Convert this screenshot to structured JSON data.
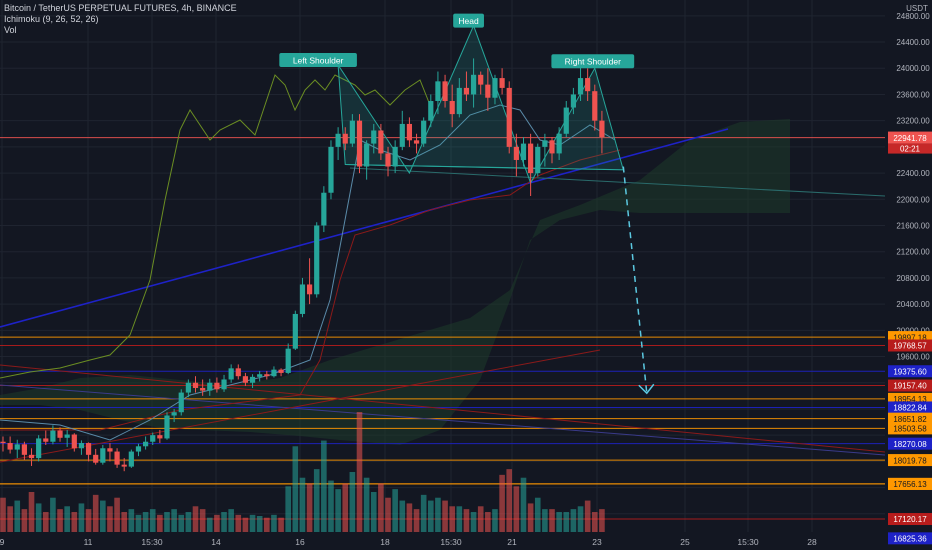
{
  "header": {
    "symbol_line": "Bitcoin / TetherUS PERPETUAL FUTURES, 4h, BINANCE",
    "indicator_ichimoku": "Ichimoku (9, 26, 52, 26)",
    "indicator_vol": "Vol"
  },
  "colors": {
    "background": "#131722",
    "up": "#26a69a",
    "down": "#ef5350",
    "ichimoku_lagging": "#6b8e23",
    "ichimoku_base": "#8b1a1a",
    "ichimoku_conversion": "#2962ff",
    "trendline_blue": "#1e22c8",
    "pattern_fill": "#26a69a",
    "forecast": "#5bc8e0",
    "cloud_fill": "#1e3a2a",
    "orange": "#ff9800",
    "red": "#b71c1c",
    "blue": "#1e22c8"
  },
  "chart_data": {
    "type": "candlestick",
    "title": "Bitcoin / TetherUS PERPETUAL FUTURES, 4h, BINANCE",
    "y_axis": {
      "unit": "USDT",
      "tick_labels": [
        "24800.00",
        "24400.00",
        "24000.00",
        "23600.00",
        "23200.00",
        "22800.00",
        "22400.00",
        "22000.00",
        "21600.00",
        "21200.00",
        "20800.00",
        "20400.00",
        "20000.00",
        "19600.00"
      ],
      "ylim": [
        16800,
        24950
      ]
    },
    "x_axis": {
      "tick_labels": [
        "9",
        "11",
        "15:30",
        "14",
        "16",
        "18",
        "15:30",
        "21",
        "23",
        "25",
        "15:30",
        "28"
      ]
    },
    "candles_ohlc": [
      [
        18300,
        18380,
        18150,
        18280
      ],
      [
        18280,
        18380,
        18120,
        18180
      ],
      [
        18180,
        18330,
        18050,
        18260
      ],
      [
        18260,
        18300,
        18020,
        18100
      ],
      [
        18100,
        18200,
        17930,
        18050
      ],
      [
        18050,
        18400,
        18000,
        18350
      ],
      [
        18350,
        18470,
        18250,
        18300
      ],
      [
        18300,
        18550,
        18260,
        18470
      ],
      [
        18470,
        18520,
        18300,
        18360
      ],
      [
        18360,
        18480,
        18220,
        18410
      ],
      [
        18410,
        18430,
        18150,
        18200
      ],
      [
        18200,
        18320,
        18100,
        18280
      ],
      [
        18280,
        18290,
        18000,
        18100
      ],
      [
        18100,
        18190,
        17950,
        17980
      ],
      [
        17980,
        18250,
        17950,
        18200
      ],
      [
        18200,
        18280,
        18000,
        18150
      ],
      [
        18150,
        18200,
        17900,
        17950
      ],
      [
        17950,
        18050,
        17850,
        17920
      ],
      [
        17920,
        18180,
        17900,
        18150
      ],
      [
        18150,
        18270,
        18080,
        18230
      ],
      [
        18230,
        18380,
        18180,
        18300
      ],
      [
        18300,
        18440,
        18250,
        18400
      ],
      [
        18400,
        18480,
        18280,
        18350
      ],
      [
        18350,
        18750,
        18330,
        18700
      ],
      [
        18700,
        18800,
        18600,
        18750
      ],
      [
        18750,
        19100,
        18700,
        19050
      ],
      [
        19050,
        19250,
        18980,
        19200
      ],
      [
        19200,
        19300,
        19050,
        19120
      ],
      [
        19120,
        19250,
        19000,
        19080
      ],
      [
        19080,
        19260,
        19000,
        19200
      ],
      [
        19200,
        19280,
        19050,
        19100
      ],
      [
        19100,
        19320,
        19060,
        19250
      ],
      [
        19250,
        19480,
        19200,
        19420
      ],
      [
        19420,
        19480,
        19250,
        19300
      ],
      [
        19300,
        19350,
        19150,
        19200
      ],
      [
        19200,
        19330,
        19120,
        19290
      ],
      [
        19290,
        19380,
        19220,
        19330
      ],
      [
        19330,
        19380,
        19250,
        19300
      ],
      [
        19300,
        19450,
        19280,
        19400
      ],
      [
        19400,
        19420,
        19300,
        19350
      ],
      [
        19350,
        19800,
        19330,
        19720
      ],
      [
        19720,
        20300,
        19700,
        20250
      ],
      [
        20250,
        20800,
        20200,
        20700
      ],
      [
        20700,
        21100,
        20400,
        20550
      ],
      [
        20550,
        21650,
        20500,
        21600
      ],
      [
        21600,
        22200,
        21500,
        22100
      ],
      [
        22100,
        22900,
        22000,
        22800
      ],
      [
        22800,
        23100,
        22600,
        23000
      ],
      [
        23000,
        23100,
        22750,
        22850
      ],
      [
        22850,
        23300,
        22800,
        23200
      ],
      [
        23200,
        23300,
        22400,
        22500
      ],
      [
        22500,
        22900,
        22300,
        22850
      ],
      [
        22850,
        23150,
        22700,
        23050
      ],
      [
        23050,
        23150,
        22600,
        22700
      ],
      [
        22700,
        22800,
        22350,
        22500
      ],
      [
        22500,
        22900,
        22400,
        22800
      ],
      [
        22800,
        23350,
        22750,
        23150
      ],
      [
        23150,
        23250,
        22800,
        22900
      ],
      [
        22900,
        23000,
        22700,
        22850
      ],
      [
        22850,
        23250,
        22800,
        23200
      ],
      [
        23200,
        23600,
        23100,
        23500
      ],
      [
        23500,
        23950,
        23300,
        23800
      ],
      [
        23800,
        23900,
        23400,
        23500
      ],
      [
        23500,
        23750,
        23100,
        23300
      ],
      [
        23300,
        23850,
        23250,
        23700
      ],
      [
        23700,
        23950,
        23500,
        23600
      ],
      [
        23600,
        24150,
        23400,
        23900
      ],
      [
        23900,
        23950,
        23600,
        23750
      ],
      [
        23750,
        24000,
        23350,
        23550
      ],
      [
        23550,
        23900,
        23450,
        23850
      ],
      [
        23850,
        24000,
        23600,
        23700
      ],
      [
        23700,
        23800,
        22700,
        22800
      ],
      [
        22800,
        23000,
        22350,
        22600
      ],
      [
        22600,
        22950,
        22500,
        22850
      ],
      [
        22850,
        23000,
        22050,
        22400
      ],
      [
        22400,
        22850,
        22350,
        22800
      ],
      [
        22800,
        23000,
        22500,
        22900
      ],
      [
        22900,
        22950,
        22550,
        22700
      ],
      [
        22700,
        23100,
        22600,
        23000
      ],
      [
        23000,
        23500,
        22950,
        23400
      ],
      [
        23400,
        23700,
        23300,
        23600
      ],
      [
        23600,
        24050,
        23500,
        23850
      ],
      [
        23850,
        24000,
        23500,
        23650
      ],
      [
        23650,
        23750,
        23050,
        23200
      ],
      [
        23200,
        23350,
        22700,
        22950
      ]
    ],
    "volumes": [
      60,
      45,
      55,
      40,
      70,
      50,
      35,
      60,
      40,
      45,
      35,
      50,
      40,
      65,
      55,
      45,
      60,
      35,
      40,
      30,
      35,
      40,
      30,
      35,
      40,
      30,
      35,
      45,
      40,
      25,
      30,
      35,
      40,
      30,
      25,
      30,
      28,
      25,
      30,
      25,
      80,
      150,
      95,
      85,
      110,
      160,
      90,
      75,
      85,
      105,
      210,
      95,
      70,
      85,
      60,
      75,
      55,
      50,
      40,
      65,
      55,
      60,
      55,
      45,
      45,
      40,
      35,
      45,
      35,
      40,
      100,
      110,
      80,
      95,
      50,
      60,
      40,
      40,
      35,
      35,
      40,
      45,
      55,
      35,
      40
    ],
    "pattern_labels": [
      "Left Shoulder",
      "Head",
      "Right Shoulder"
    ],
    "price_level_labels": [
      {
        "label": "22941.78",
        "color": "#ef5350",
        "price": 22941.78
      },
      {
        "label": "19897.18",
        "color": "#ff9800",
        "price": 19897.18
      },
      {
        "label": "19768.57",
        "color": "#b71c1c",
        "price": 19768.57
      },
      {
        "label": "19375.60",
        "color": "#1e22c8",
        "price": 19375.6
      },
      {
        "label": "19157.40",
        "color": "#b71c1c",
        "price": 19157.4
      },
      {
        "label": "18954.13",
        "color": "#ff9800",
        "price": 18954.13
      },
      {
        "label": "18822.84",
        "color": "#1e22c8",
        "price": 18822.84
      },
      {
        "label": "18651.82",
        "color": "#ff9800",
        "price": 18651.82
      },
      {
        "label": "18503.58",
        "color": "#ff9800",
        "price": 18503.58
      },
      {
        "label": "18270.08",
        "color": "#1e22c8",
        "price": 18270.08
      },
      {
        "label": "18019.78",
        "color": "#ff9800",
        "price": 18019.78
      },
      {
        "label": "17656.13",
        "color": "#ff9800",
        "price": 17656.13
      },
      {
        "label": "17656.13",
        "color": "#ff9800",
        "price": 17656.13
      },
      {
        "label": "17120.17",
        "color": "#b71c1c",
        "price": 17120.17
      },
      {
        "label": "16825.36",
        "color": "#1e22c8",
        "price": 16825.36
      }
    ],
    "countdown_label": "02:21",
    "head_shoulders": {
      "left_shoulder": {
        "x_index": 47,
        "price": 24050
      },
      "head": {
        "x_index": 66,
        "price": 24650
      },
      "right_shoulder": {
        "x_index": 83,
        "price": 24000
      },
      "neckline_start": {
        "x_index": 48,
        "price": 22530
      },
      "neckline_end": {
        "x_index": 121,
        "price": 22000
      }
    },
    "forecast_target": {
      "x_index": 90,
      "price": 19040
    }
  }
}
